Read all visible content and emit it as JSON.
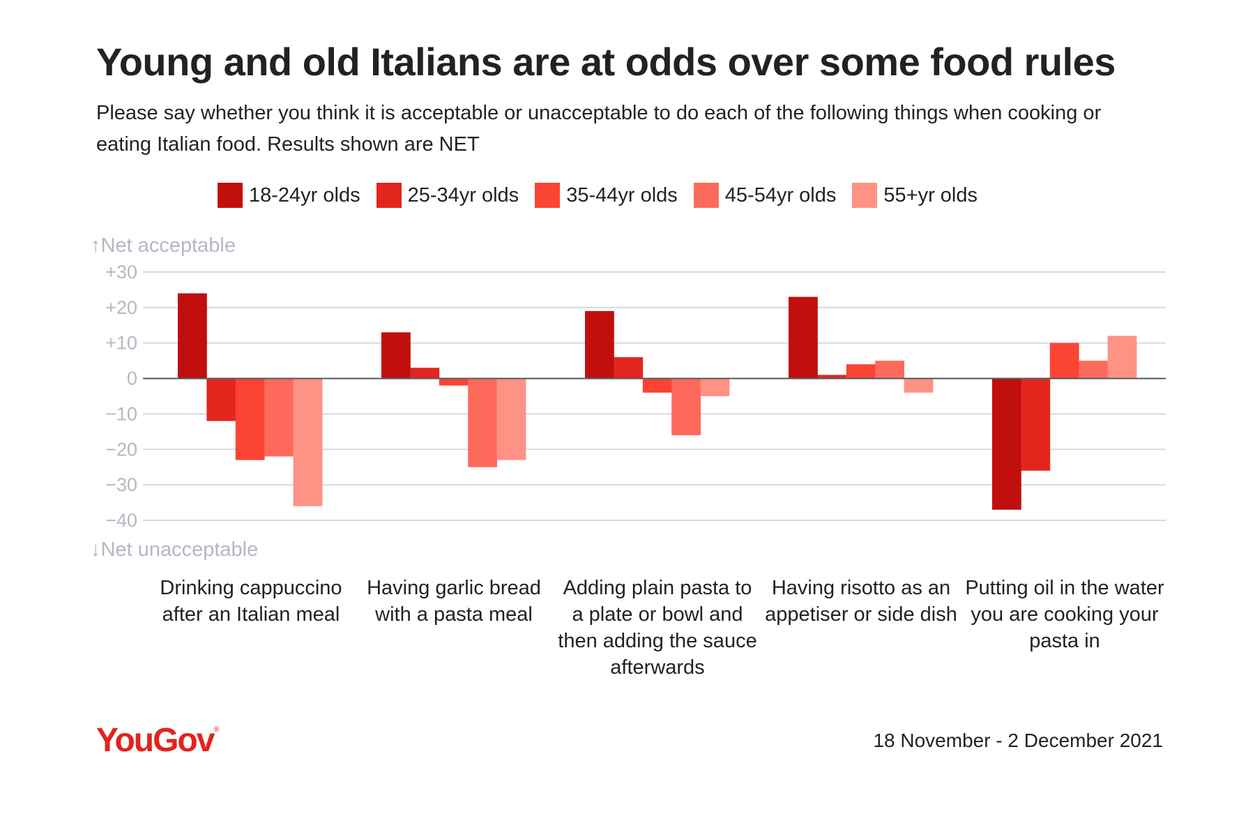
{
  "header": {
    "title": "Young and old Italians are at odds over some food rules",
    "subtitle": "Please say whether you think it is acceptable or unacceptable to do each of the following things when cooking or eating Italian food. Results shown are NET"
  },
  "axis_notes": {
    "top": "↑Net acceptable",
    "bottom": "↓Net unacceptable"
  },
  "chart_data": {
    "type": "bar",
    "categories": [
      "Drinking cappuccino after an Italian meal",
      "Having garlic bread with a pasta meal",
      "Adding plain pasta to a plate or bowl and then adding the sauce afterwards",
      "Having risotto as an appetiser or side dish",
      "Putting oil in the water you are cooking your pasta in"
    ],
    "series": [
      {
        "name": "18-24yr olds",
        "color": "#c00f0c",
        "values": [
          24,
          13,
          19,
          23,
          -37
        ]
      },
      {
        "name": "25-34yr olds",
        "color": "#e2261e",
        "values": [
          -12,
          3,
          6,
          1,
          -26
        ]
      },
      {
        "name": "35-44yr olds",
        "color": "#fb4434",
        "values": [
          -23,
          -2,
          -4,
          4,
          10
        ]
      },
      {
        "name": "45-54yr olds",
        "color": "#fd6a5c",
        "values": [
          -22,
          -25,
          -16,
          5,
          5
        ]
      },
      {
        "name": "55+yr olds",
        "color": "#fe9285",
        "values": [
          -36,
          -23,
          -5,
          -4,
          12
        ]
      }
    ],
    "ylim": [
      -40,
      30
    ],
    "yticks": [
      30,
      20,
      10,
      0,
      -10,
      -20,
      -30,
      -40
    ],
    "ytick_labels": [
      "+30",
      "+20",
      "+10",
      "0",
      "−10",
      "−20",
      "−30",
      "−40"
    ],
    "legend_position": "top",
    "grid": true
  },
  "footer": {
    "brand": "YouGov",
    "brand_mark": "®",
    "date_range": "18 November - 2 December 2021"
  }
}
